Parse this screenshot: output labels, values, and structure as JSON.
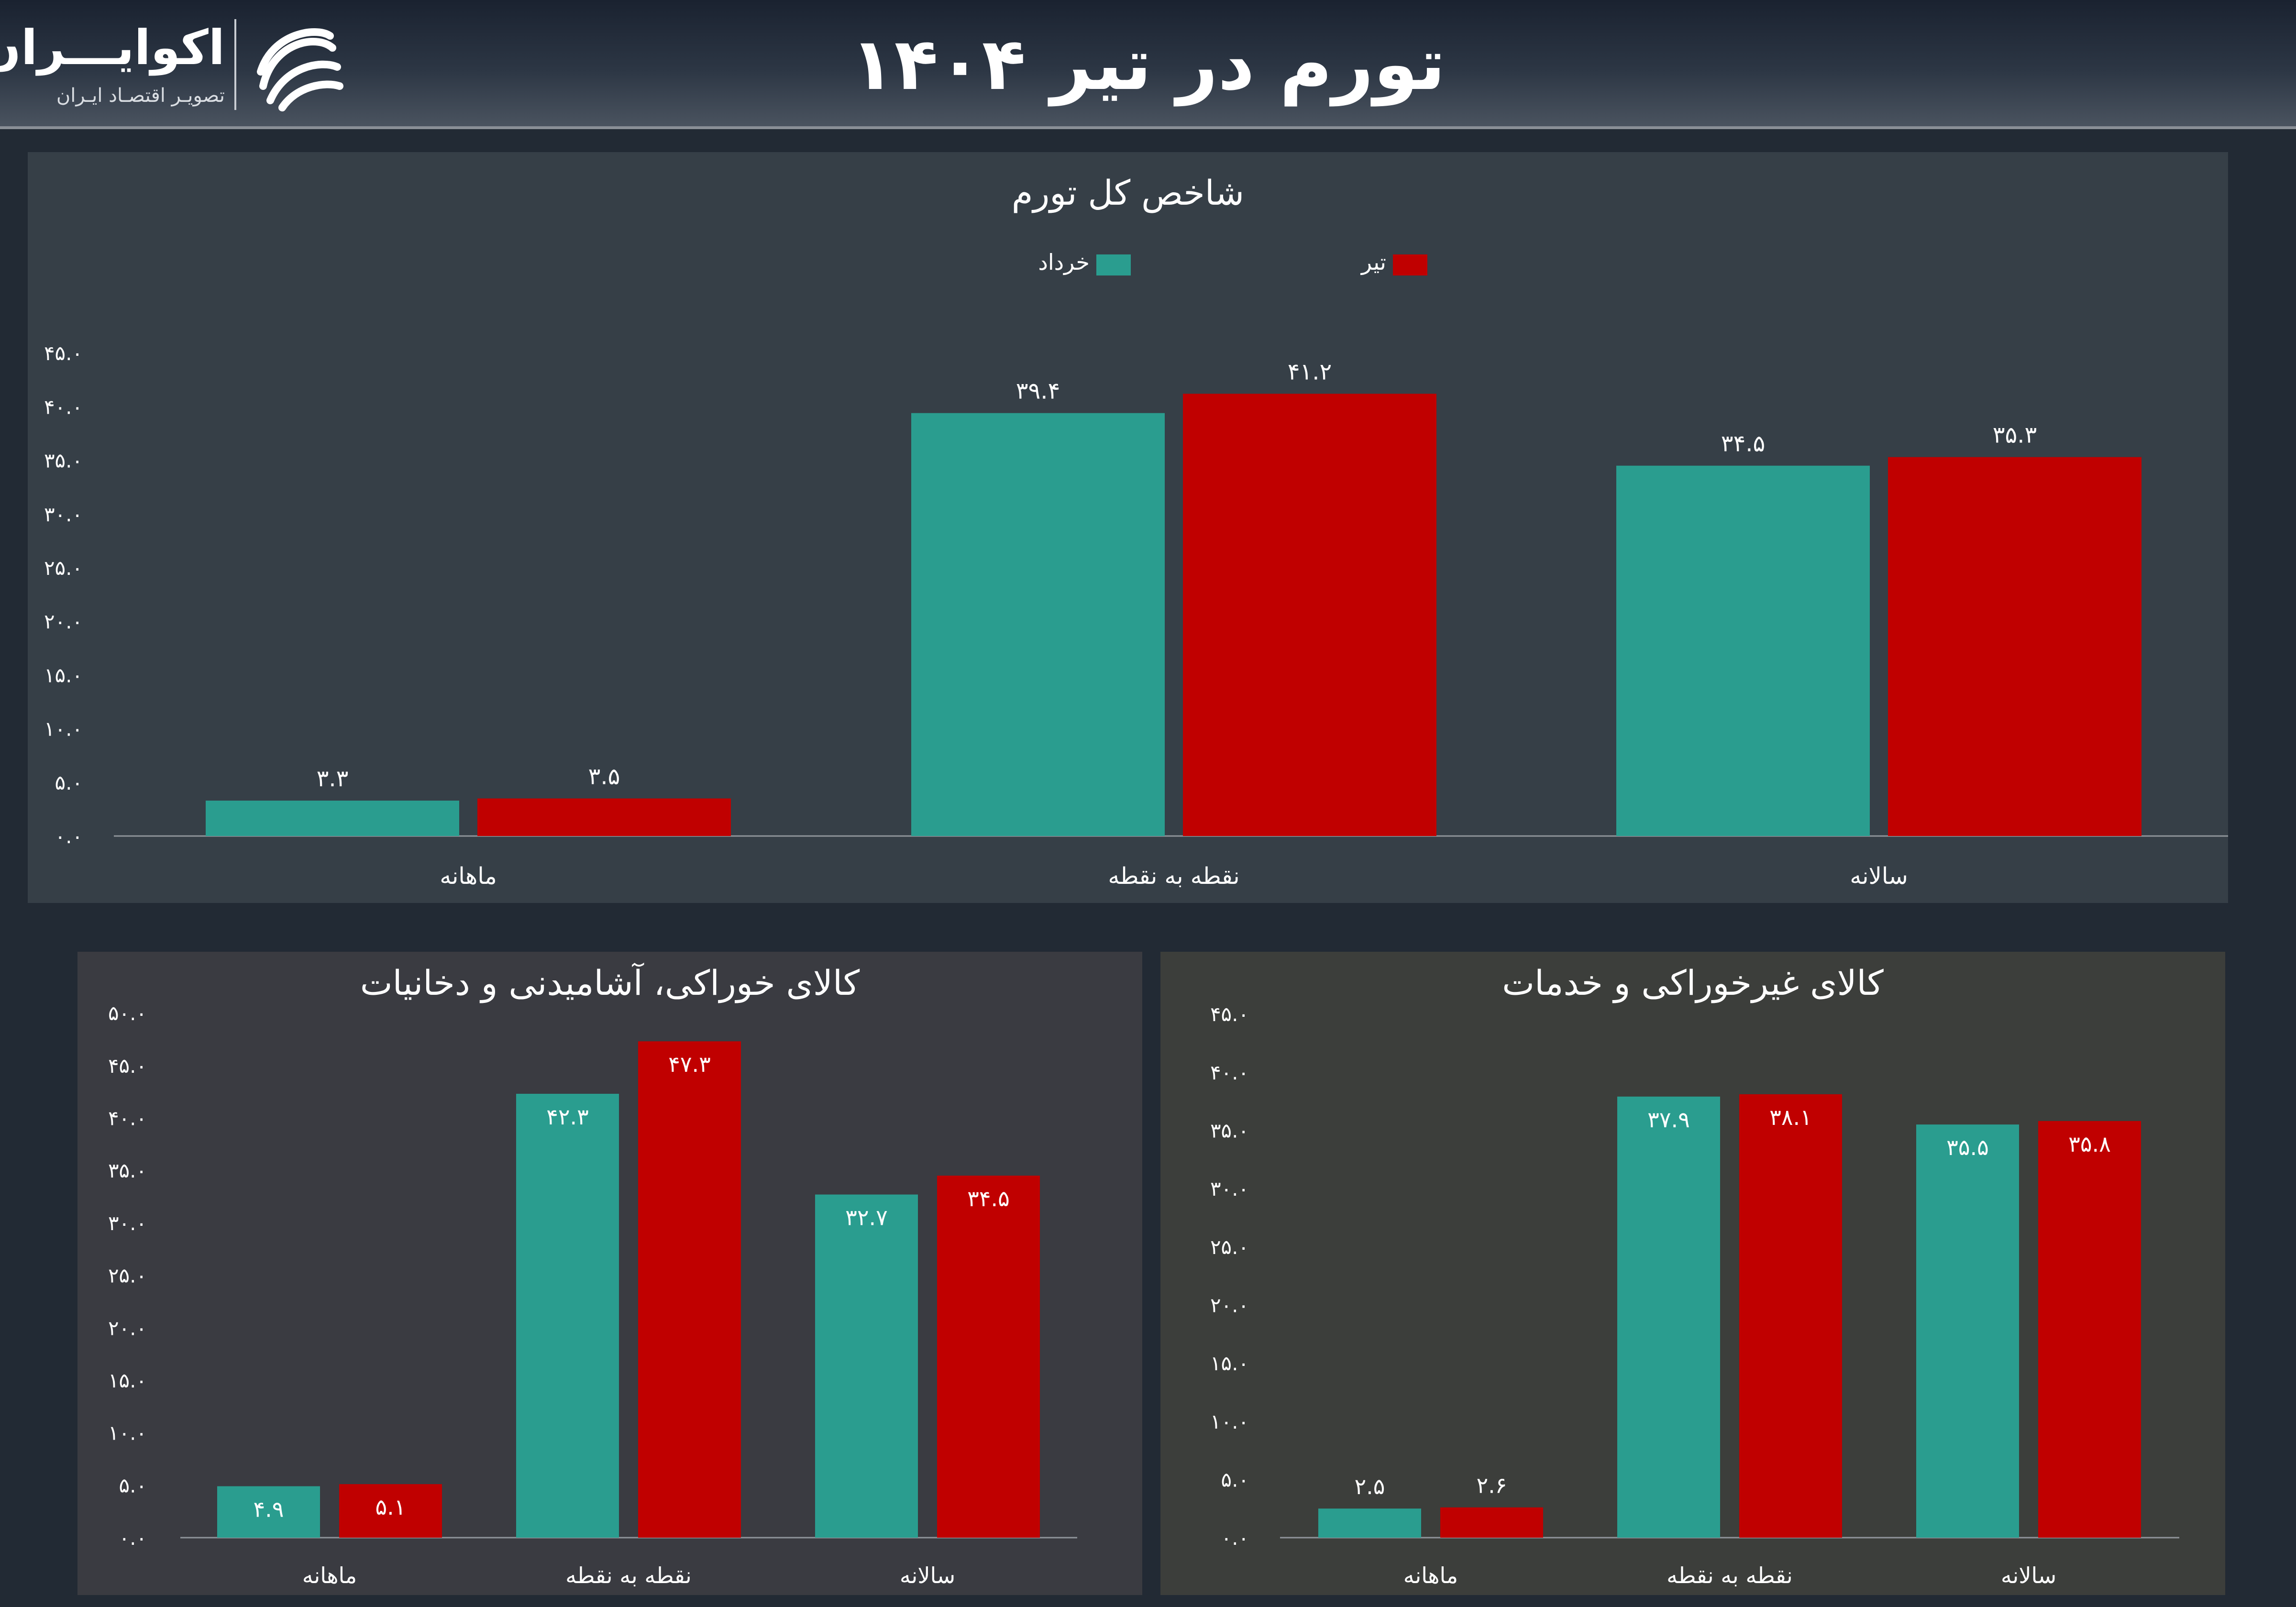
{
  "header": {
    "title": "تورم در تیر ۱۴۰۴",
    "logo_name": "اکوایـــران",
    "logo_tagline": "تصویـر اقتصـاد ایـران",
    "logo_icon": "ecoiran-logo-icon"
  },
  "colors": {
    "khordad": "#2a9d8f",
    "tir": "#c00000",
    "axis": "#8f949a"
  },
  "chart_data": [
    {
      "type": "bar",
      "title": "شاخص کل تورم",
      "legend_placement": "top-center",
      "categories": [
        "ماهانه",
        "نقطه به نقطه",
        "سالانه"
      ],
      "series": [
        {
          "name": "خرداد",
          "values": [
            3.3,
            39.4,
            34.5
          ],
          "labels": [
            "۳.۳",
            "۳۹.۴",
            "۳۴.۵"
          ]
        },
        {
          "name": "تیر",
          "values": [
            3.5,
            41.2,
            35.3
          ],
          "labels": [
            "۳.۵",
            "۴۱.۲",
            "۳۵.۳"
          ]
        }
      ],
      "ylim": [
        0,
        45
      ],
      "yticks": [
        0,
        5,
        10,
        15,
        20,
        25,
        30,
        35,
        40,
        45
      ],
      "ytick_labels": [
        "۰.۰",
        "۵.۰",
        "۱۰.۰",
        "۱۵.۰",
        "۲۰.۰",
        "۲۵.۰",
        "۳۰.۰",
        "۳۵.۰",
        "۴۰.۰",
        "۴۵.۰"
      ],
      "label_position": "above",
      "grid": false
    },
    {
      "type": "bar",
      "title": "کالای خوراکی، آشامیدنی و دخانیات",
      "categories": [
        "ماهانه",
        "نقطه به نقطه",
        "سالانه"
      ],
      "series": [
        {
          "name": "خرداد",
          "values": [
            4.9,
            42.3,
            32.7
          ],
          "labels": [
            "۴.۹",
            "۴۲.۳",
            "۳۲.۷"
          ]
        },
        {
          "name": "تیر",
          "values": [
            5.1,
            47.3,
            34.5
          ],
          "labels": [
            "۵.۱",
            "۴۷.۳",
            "۳۴.۵"
          ]
        }
      ],
      "ylim": [
        0,
        50
      ],
      "yticks": [
        0,
        5,
        10,
        15,
        20,
        25,
        30,
        35,
        40,
        45,
        50
      ],
      "ytick_labels": [
        "۰.۰",
        "۵.۰",
        "۱۰.۰",
        "۱۵.۰",
        "۲۰.۰",
        "۲۵.۰",
        "۳۰.۰",
        "۳۵.۰",
        "۴۰.۰",
        "۴۵.۰",
        "۵۰.۰"
      ],
      "label_position": "inside",
      "grid": false
    },
    {
      "type": "bar",
      "title": "کالای غیرخوراکی و خدمات",
      "categories": [
        "ماهانه",
        "نقطه به نقطه",
        "سالانه"
      ],
      "series": [
        {
          "name": "خرداد",
          "values": [
            2.5,
            37.9,
            35.5
          ],
          "labels": [
            "۲.۵",
            "۳۷.۹",
            "۳۵.۵"
          ]
        },
        {
          "name": "تیر",
          "values": [
            2.6,
            38.1,
            35.8
          ],
          "labels": [
            "۲.۶",
            "۳۸.۱",
            "۳۵.۸"
          ]
        }
      ],
      "ylim": [
        0,
        45
      ],
      "yticks": [
        0,
        5,
        10,
        15,
        20,
        25,
        30,
        35,
        40,
        45
      ],
      "ytick_labels": [
        "۰.۰",
        "۵.۰",
        "۱۰.۰",
        "۱۵.۰",
        "۲۰.۰",
        "۲۵.۰",
        "۳۰.۰",
        "۳۵.۰",
        "۴۰.۰",
        "۴۵.۰"
      ],
      "label_position": "mixed",
      "grid": false
    }
  ]
}
